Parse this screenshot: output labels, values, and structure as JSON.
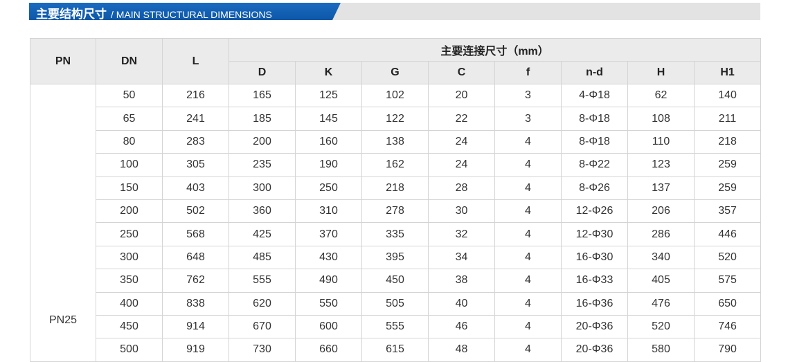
{
  "title": {
    "cn": "主要结构尺寸",
    "en": "/ MAIN STRUCTURAL DIMENSIONS"
  },
  "colors": {
    "title_blue": "#0d57a8",
    "header_bg": "#ebebeb",
    "border": "#d4d4d4"
  },
  "table": {
    "headers": {
      "pn": "PN",
      "dn": "DN",
      "l": "L",
      "group": "主要连接尺寸（mm）",
      "sub": [
        "D",
        "K",
        "G",
        "C",
        "f",
        "n-d",
        "H",
        "H1"
      ]
    },
    "pn_value": "PN25",
    "rows": [
      [
        "50",
        "216",
        "165",
        "125",
        "102",
        "20",
        "3",
        "4-Φ18",
        "62",
        "140"
      ],
      [
        "65",
        "241",
        "185",
        "145",
        "122",
        "22",
        "3",
        "8-Φ18",
        "108",
        "211"
      ],
      [
        "80",
        "283",
        "200",
        "160",
        "138",
        "24",
        "4",
        "8-Φ18",
        "110",
        "218"
      ],
      [
        "100",
        "305",
        "235",
        "190",
        "162",
        "24",
        "4",
        "8-Φ22",
        "123",
        "259"
      ],
      [
        "150",
        "403",
        "300",
        "250",
        "218",
        "28",
        "4",
        "8-Φ26",
        "137",
        "259"
      ],
      [
        "200",
        "502",
        "360",
        "310",
        "278",
        "30",
        "4",
        "12-Φ26",
        "206",
        "357"
      ],
      [
        "250",
        "568",
        "425",
        "370",
        "335",
        "32",
        "4",
        "12-Φ30",
        "286",
        "446"
      ],
      [
        "300",
        "648",
        "485",
        "430",
        "395",
        "34",
        "4",
        "16-Φ30",
        "340",
        "520"
      ],
      [
        "350",
        "762",
        "555",
        "490",
        "450",
        "38",
        "4",
        "16-Φ33",
        "405",
        "575"
      ],
      [
        "400",
        "838",
        "620",
        "550",
        "505",
        "40",
        "4",
        "16-Φ36",
        "476",
        "650"
      ],
      [
        "450",
        "914",
        "670",
        "600",
        "555",
        "46",
        "4",
        "20-Φ36",
        "520",
        "746"
      ],
      [
        "500",
        "919",
        "730",
        "660",
        "615",
        "48",
        "4",
        "20-Φ36",
        "580",
        "790"
      ]
    ]
  }
}
